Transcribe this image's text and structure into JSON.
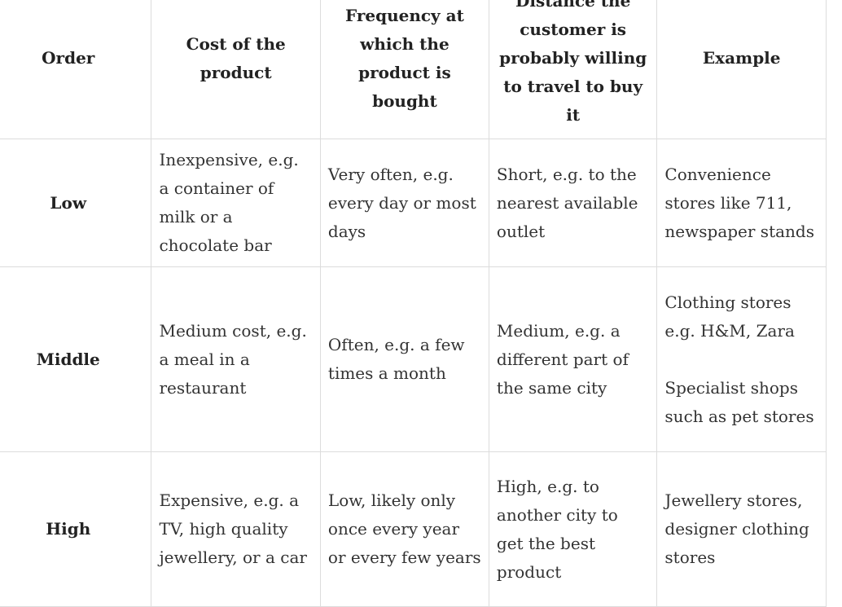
{
  "headers": [
    "Order",
    "Cost of the product",
    "Frequency at which the product is bought",
    "Distance the customer is probably willing to travel to buy it",
    "Example"
  ],
  "rows": [
    {
      "order": "Low",
      "cost": "Inexpensive, e.g. a container of milk or a chocolate bar",
      "frequency": "Very often, e.g. every day or most days",
      "distance": "Short, e.g. to the nearest available outlet",
      "example": [
        "Convenience stores like 711, newspaper stands"
      ]
    },
    {
      "order": "Middle",
      "cost": "Medium cost, e.g. a meal in a restaurant",
      "frequency": "Often, e.g. a few times a month",
      "distance": "Medium, e.g. a different part of the same city",
      "example": [
        "Clothing stores e.g. H&M, Zara",
        "Specialist shops such as pet stores"
      ]
    },
    {
      "order": "High",
      "cost": "Expensive, e.g. a TV, high quality jewellery, or a car",
      "frequency": "Low, likely only once every year or every few years",
      "distance": "High, e.g. to another city to get the best product",
      "example": [
        "Jewellery stores, designer clothing stores"
      ]
    }
  ]
}
